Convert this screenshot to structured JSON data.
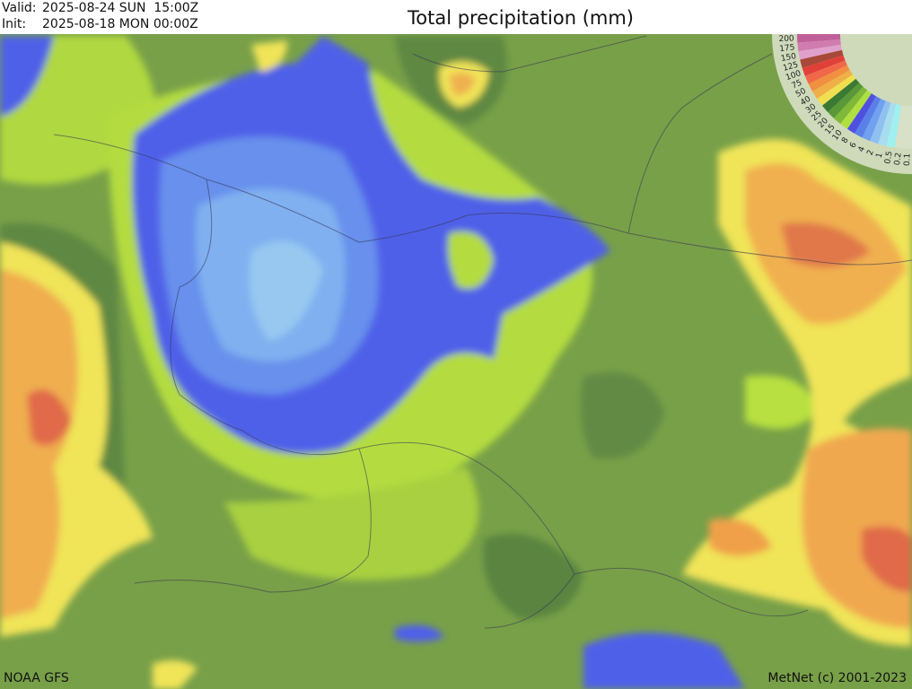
{
  "header": {
    "valid_label": "Valid:",
    "valid_value": "2025-08-24 SUN  15:00Z",
    "init_label": "Init:",
    "init_value": "2025-08-18 MON 00:00Z",
    "title": "Total precipitation (mm)"
  },
  "legend": {
    "unit": "mm",
    "levels": [
      "200",
      "175",
      "150",
      "125",
      "100",
      "75",
      "50",
      "40",
      "30",
      "25",
      "20",
      "15",
      "10",
      "8",
      "6",
      "4",
      "2",
      "1",
      "0.5",
      "0.2",
      "0.1"
    ],
    "colors": [
      "#c0609a",
      "#d07cb0",
      "#e0a0cc",
      "#a84838",
      "#e04038",
      "#f06848",
      "#f09040",
      "#f0b048",
      "#f0e050",
      "#3c7a34",
      "#5a9838",
      "#80b838",
      "#b0e040",
      "#5050e0",
      "#5880e8",
      "#70a0f0",
      "#90c0f0",
      "#a8dcf0",
      "#a0f0f0",
      "#d8e0c8",
      "#d8e0c8"
    ]
  },
  "footer": {
    "source": "NOAA GFS",
    "copyright": "MetNet (c) 2001-2023"
  },
  "colors": {
    "base_green": "#7aa04a",
    "dark_green": "#5a8040",
    "light_green": "#b8e040",
    "yellow": "#f0e858",
    "orange": "#f0a848",
    "red": "#e06040",
    "blue": "#5060e8",
    "light_blue": "#80b8f0"
  }
}
